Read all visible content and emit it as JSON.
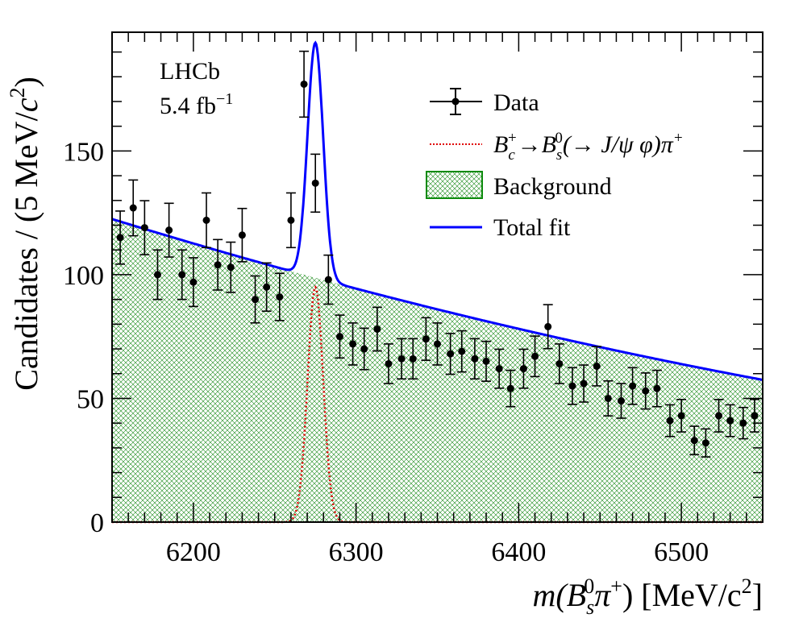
{
  "chart_data": {
    "type": "scatter",
    "title": "",
    "experiment_label": "LHCb",
    "luminosity_label": {
      "value": "5.4 fb",
      "exponent": "−1"
    },
    "xlabel": {
      "prefix": "m(B",
      "sub": "s",
      "sup": "0",
      "mid": "π",
      "charge": "+",
      "suffix": ") [MeV/c",
      "exp": "2",
      "close": "]"
    },
    "ylabel": {
      "prefix": "Candidates / (5 MeV/",
      "c": "c",
      "exp": "2",
      "close": ")"
    },
    "xlim": [
      6150,
      6550
    ],
    "ylim": [
      0,
      198
    ],
    "x_ticks": [
      6200,
      6300,
      6400,
      6500
    ],
    "y_ticks": [
      0,
      50,
      100,
      150
    ],
    "bin_width": 5,
    "legend": {
      "data": "Data",
      "signal": {
        "base": "B",
        "base_sub": "c",
        "base_sup": "+",
        "arrow": "→",
        "bs": "B",
        "bs_sub": "s",
        "bs_sup": "0",
        "decay": "(→ J/ψ φ)π",
        "decay_sup": "+"
      },
      "background": "Background",
      "total": "Total fit"
    },
    "colors": {
      "data": "#000000",
      "signal": "#e00000",
      "background": "#0a8a0a",
      "total": "#0000ff"
    },
    "data_points": {
      "x": [
        6155,
        6163,
        6170,
        6178,
        6185,
        6193,
        6200,
        6208,
        6215,
        6223,
        6230,
        6238,
        6245,
        6253,
        6260,
        6268,
        6275,
        6283,
        6290,
        6298,
        6305,
        6313,
        6320,
        6328,
        6335,
        6343,
        6350,
        6358,
        6365,
        6373,
        6380,
        6388,
        6395,
        6403,
        6410,
        6418,
        6425,
        6433,
        6440,
        6448,
        6455,
        6463,
        6470,
        6478,
        6485,
        6493,
        6500,
        6508,
        6515,
        6523,
        6530,
        6538,
        6545
      ],
      "y": [
        115,
        127,
        119,
        100,
        118,
        100,
        97,
        122,
        104,
        103,
        116,
        90,
        95,
        91,
        122,
        177,
        137,
        98,
        75,
        72,
        70,
        78,
        64,
        66,
        66,
        74,
        72,
        68,
        69,
        66,
        65,
        62,
        54,
        62,
        67,
        79,
        64,
        55,
        56,
        63,
        50,
        49,
        55,
        53,
        54,
        41,
        43,
        33,
        32,
        43,
        41,
        40,
        43
      ]
    },
    "background_model": {
      "intercept": 122.5,
      "slope": -0.2025,
      "curve": 0.0001,
      "x0": 6150
    },
    "signal_model": {
      "mean": 6275,
      "sigma": 4.8,
      "peak": 95
    }
  }
}
